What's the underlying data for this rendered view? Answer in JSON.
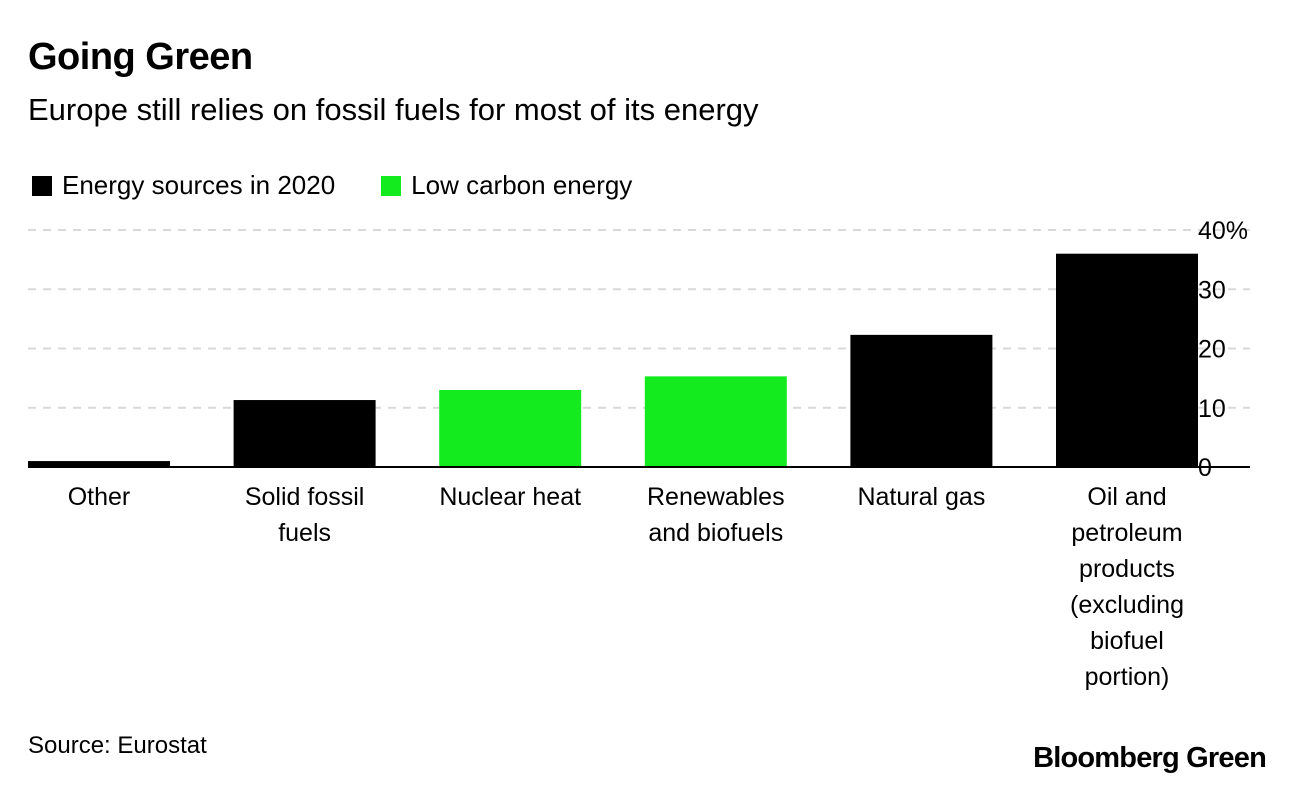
{
  "header": {
    "title": "Going Green",
    "subtitle": "Europe still relies on fossil fuels for most of its energy"
  },
  "legend": {
    "items": [
      {
        "label": "Energy sources in 2020",
        "color": "#000000"
      },
      {
        "label": "Low carbon energy",
        "color": "#14eb1e"
      }
    ]
  },
  "footer": {
    "source": "Source: Eurostat",
    "brand": "Bloomberg Green"
  },
  "chart_data": {
    "type": "bar",
    "title": "Going Green",
    "subtitle": "Europe still relies on fossil fuels for most of its energy",
    "categories": [
      [
        "Other"
      ],
      [
        "Solid fossil",
        "fuels"
      ],
      [
        "Nuclear heat"
      ],
      [
        "Renewables",
        "and biofuels"
      ],
      [
        "Natural gas"
      ],
      [
        "Oil and",
        "petroleum",
        "products",
        "(excluding",
        "biofuel",
        "portion)"
      ]
    ],
    "values": [
      1,
      11.3,
      13,
      15.3,
      22.3,
      36
    ],
    "low_carbon": [
      false,
      false,
      true,
      true,
      false,
      false
    ],
    "colors": {
      "default": "#000000",
      "low_carbon": "#14eb1e",
      "grid": "#d9d9d9"
    },
    "ylim": [
      0,
      40
    ],
    "yticks": [
      0,
      10,
      20,
      30,
      40
    ],
    "ytick_labels": [
      "0",
      "10",
      "20",
      "30",
      "40%"
    ],
    "xlabel": "",
    "ylabel": "",
    "grid": true,
    "legend_position": "top-left"
  }
}
